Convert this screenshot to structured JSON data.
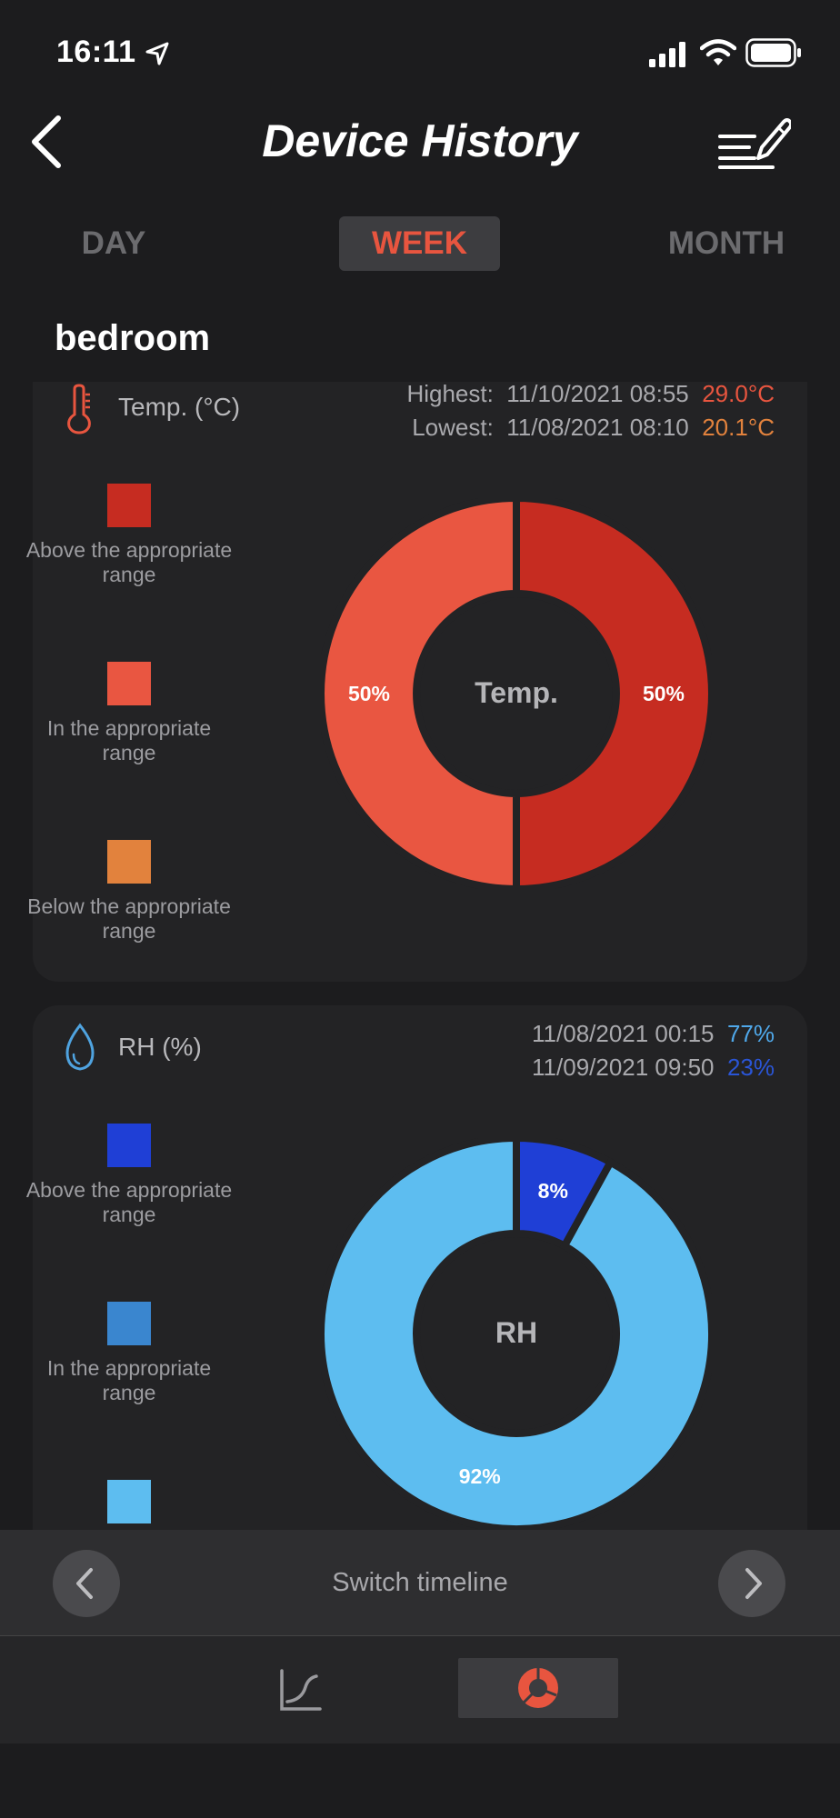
{
  "status_bar": {
    "time": "16:11"
  },
  "header": {
    "title": "Device History"
  },
  "tabs": [
    {
      "label": "DAY",
      "active": false
    },
    {
      "label": "WEEK",
      "active": true
    },
    {
      "label": "MONTH",
      "active": false
    }
  ],
  "location": "bedroom",
  "temp_card": {
    "title": "Temp. (°C)",
    "highest_label": "Highest:",
    "highest_time": "11/10/2021 08:55",
    "highest_value": "29.0°C",
    "lowest_label": "Lowest:",
    "lowest_time": "11/08/2021 08:10",
    "lowest_value": "20.1°C",
    "legend": [
      {
        "label": "Above the appropriate range",
        "color": "#c62c21"
      },
      {
        "label": "In the appropriate range",
        "color": "#e95641"
      },
      {
        "label": "Below the appropriate range",
        "color": "#e2823d"
      }
    ]
  },
  "rh_card": {
    "title": "RH (%)",
    "highest_time": "11/08/2021 00:15",
    "highest_value": "77%",
    "lowest_time": "11/09/2021 09:50",
    "lowest_value": "23%",
    "legend": [
      {
        "label": "Above the appropriate range",
        "color": "#1f3fd6"
      },
      {
        "label": "In the appropriate range",
        "color": "#3a86cf"
      },
      {
        "label": "",
        "color": "#5dbdf0"
      }
    ]
  },
  "chart_data": [
    {
      "type": "pie",
      "title": "Temp.",
      "slices": [
        {
          "label": "50%",
          "value": 50,
          "color": "#c62c21"
        },
        {
          "label": "50%",
          "value": 50,
          "color": "#e95641"
        }
      ]
    },
    {
      "type": "pie",
      "title": "RH",
      "slices": [
        {
          "label": "8%",
          "value": 8,
          "color": "#1f3fd6"
        },
        {
          "label": "92%",
          "value": 92,
          "color": "#5dbdf0"
        }
      ]
    }
  ],
  "footer": {
    "switch_label": "Switch timeline"
  },
  "colors": {
    "accent": "#e8553f",
    "background": "#1c1c1e",
    "card": "#232325"
  }
}
